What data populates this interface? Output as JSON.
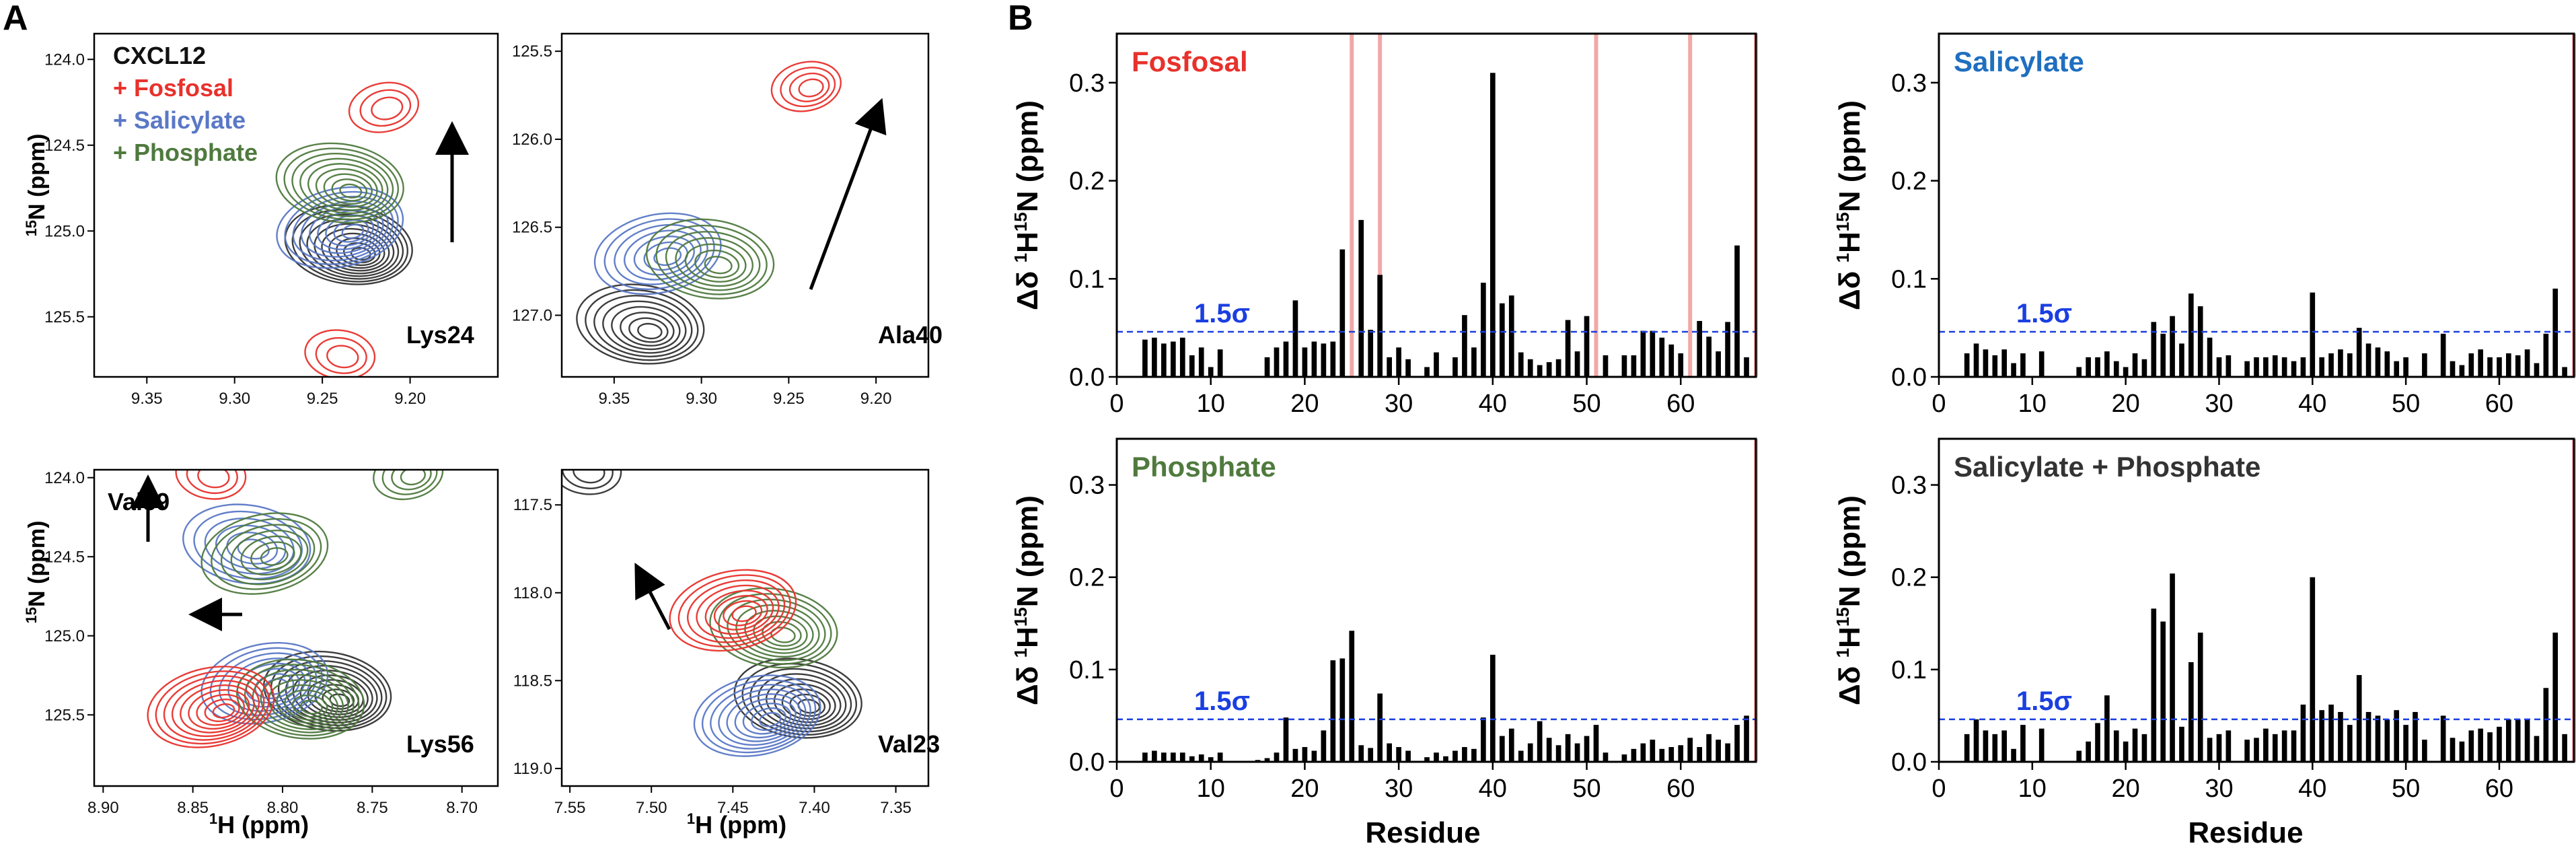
{
  "colors": {
    "fosfosal": "#e8312c",
    "salicylate": "#5a78c6",
    "phosphate": "#4f7a3e",
    "cxcl12": "#333333",
    "threshold": "#1a3fe0",
    "highlight": "#f2a7a7",
    "salicylate_title": "#1f6fc0",
    "bar": "#000000"
  },
  "panel_labels": {
    "a": "A",
    "b": "B"
  },
  "nmr_legend": {
    "title": "CXCL12",
    "entries": [
      {
        "label": "+ Fosfosal",
        "color_key": "fosfosal"
      },
      {
        "label": "+ Salicylate",
        "color_key": "salicylate"
      },
      {
        "label": "+ Phosphate",
        "color_key": "phosphate"
      }
    ]
  },
  "nmr_axis_titles": {
    "n15_prefix": "15",
    "n15_rest": "N (ppm)",
    "h1_prefix": "1",
    "h1_rest": "H (ppm)"
  },
  "nmr_panels": [
    {
      "residue": "Lys24",
      "x_ticks": [
        "9.35",
        "9.30",
        "9.25",
        "9.20"
      ],
      "y_ticks": [
        "124.0",
        "124.5",
        "125.0",
        "125.5"
      ],
      "spectra": [
        {
          "key": "cxcl12",
          "center_ppm": [
            9.235,
            125.08
          ],
          "levels": 10
        },
        {
          "key": "salicylate",
          "center_ppm": [
            9.24,
            124.98
          ],
          "levels": 9
        },
        {
          "key": "phosphate",
          "center_ppm": [
            9.24,
            124.72
          ],
          "levels": 9
        },
        {
          "key": "fosfosal",
          "center_ppm": [
            9.215,
            124.28
          ],
          "levels": 3
        },
        {
          "key": "fosfosal",
          "center_ppm": [
            9.24,
            125.72
          ],
          "levels": 3
        }
      ]
    },
    {
      "residue": "Ala40",
      "x_ticks": [
        "9.35",
        "9.30",
        "9.25",
        "9.20"
      ],
      "y_ticks": [
        "125.5",
        "126.0",
        "126.5",
        "127.0"
      ],
      "spectra": [
        {
          "key": "cxcl12",
          "center_ppm": [
            9.335,
            127.05
          ],
          "levels": 8
        },
        {
          "key": "salicylate",
          "center_ppm": [
            9.325,
            126.65
          ],
          "levels": 7
        },
        {
          "key": "phosphate",
          "center_ppm": [
            9.295,
            126.68
          ],
          "levels": 7
        },
        {
          "key": "fosfosal",
          "center_ppm": [
            9.24,
            125.7
          ],
          "levels": 4
        }
      ]
    },
    {
      "residue": "Lys56",
      "label2": "Val39",
      "x_ticks": [
        "8.90",
        "8.85",
        "8.80",
        "8.75",
        "8.70"
      ],
      "y_ticks": [
        "124.0",
        "124.5",
        "125.0",
        "125.5"
      ],
      "spectra": [
        {
          "key": "cxcl12",
          "center_ppm": [
            8.775,
            125.35
          ],
          "levels": 10
        },
        {
          "key": "salicylate",
          "center_ppm": [
            8.81,
            125.3
          ],
          "levels": 8
        },
        {
          "key": "phosphate",
          "center_ppm": [
            8.79,
            125.4
          ],
          "levels": 9
        },
        {
          "key": "fosfosal",
          "center_ppm": [
            8.84,
            125.45
          ],
          "levels": 9
        },
        {
          "key": "salicylate",
          "center_ppm": [
            8.82,
            124.42
          ],
          "levels": 6
        },
        {
          "key": "phosphate",
          "center_ppm": [
            8.81,
            124.48
          ],
          "levels": 7
        },
        {
          "key": "fosfosal",
          "center_ppm": [
            8.84,
            123.98
          ],
          "levels": 3
        },
        {
          "key": "phosphate",
          "center_ppm": [
            8.73,
            123.98
          ],
          "levels": 4
        }
      ]
    },
    {
      "residue": "Val23",
      "x_ticks": [
        "7.55",
        "7.50",
        "7.45",
        "7.40",
        "7.35"
      ],
      "y_ticks": [
        "117.5",
        "118.0",
        "118.5",
        "119.0"
      ],
      "spectra": [
        {
          "key": "cxcl12",
          "center_ppm": [
            7.41,
            118.6
          ],
          "levels": 9
        },
        {
          "key": "salicylate",
          "center_ppm": [
            7.435,
            118.7
          ],
          "levels": 9
        },
        {
          "key": "phosphate",
          "center_ppm": [
            7.425,
            118.2
          ],
          "levels": 8
        },
        {
          "key": "fosfosal",
          "center_ppm": [
            7.45,
            118.1
          ],
          "levels": 8
        },
        {
          "key": "cxcl12",
          "center_ppm": [
            7.54,
            117.3
          ],
          "levels": 3
        }
      ]
    }
  ],
  "threshold_label": "1.5σ",
  "y_axis_title": {
    "pre": "Δδ ",
    "h_sup": "1",
    "h": "H",
    "n_sup": "15",
    "n": "N (ppm)"
  },
  "chart_data": [
    {
      "type": "bar",
      "title": "Fosfosal",
      "title_color_key": "fosfosal",
      "xlabel": "",
      "ylabel": "Δδ 1H15N (ppm)",
      "xlim": [
        0,
        68
      ],
      "ylim": [
        0,
        0.35
      ],
      "x_ticks": [
        0,
        10,
        20,
        30,
        40,
        50,
        60
      ],
      "y_ticks": [
        0.0,
        0.1,
        0.2,
        0.3
      ],
      "threshold": 0.046,
      "highlight_residues": [
        25,
        28,
        51,
        61,
        68
      ],
      "x": [
        3,
        4,
        5,
        6,
        7,
        8,
        9,
        10,
        11,
        16,
        17,
        18,
        19,
        20,
        21,
        22,
        23,
        24,
        26,
        27,
        28,
        29,
        30,
        31,
        33,
        34,
        36,
        37,
        38,
        39,
        40,
        41,
        42,
        43,
        44,
        45,
        46,
        47,
        48,
        49,
        50,
        52,
        54,
        55,
        56,
        57,
        58,
        59,
        60,
        62,
        63,
        64,
        65,
        66,
        67
      ],
      "values": [
        0.038,
        0.04,
        0.034,
        0.036,
        0.04,
        0.022,
        0.03,
        0.01,
        0.028,
        0.02,
        0.03,
        0.036,
        0.078,
        0.03,
        0.036,
        0.034,
        0.036,
        0.13,
        0.16,
        0.048,
        0.104,
        0.02,
        0.03,
        0.018,
        0.01,
        0.025,
        0.02,
        0.063,
        0.03,
        0.096,
        0.31,
        0.075,
        0.083,
        0.025,
        0.018,
        0.012,
        0.015,
        0.018,
        0.058,
        0.026,
        0.062,
        0.022,
        0.022,
        0.022,
        0.047,
        0.047,
        0.04,
        0.033,
        0.024,
        0.057,
        0.041,
        0.026,
        0.056,
        0.134,
        0.02
      ]
    },
    {
      "type": "bar",
      "title": "Salicylate",
      "title_color_key": "salicylate_title",
      "xlabel": "",
      "ylabel": "Δδ 1H15N (ppm)",
      "xlim": [
        0,
        68
      ],
      "ylim": [
        0,
        0.35
      ],
      "x_ticks": [
        0,
        10,
        20,
        30,
        40,
        50,
        60
      ],
      "y_ticks": [
        0.0,
        0.1,
        0.2,
        0.3
      ],
      "threshold": 0.046,
      "highlight_residues": [
        68
      ],
      "x": [
        3,
        4,
        5,
        6,
        7,
        8,
        9,
        11,
        15,
        16,
        17,
        18,
        19,
        20,
        21,
        22,
        23,
        24,
        25,
        26,
        27,
        28,
        29,
        30,
        31,
        33,
        34,
        35,
        36,
        37,
        38,
        39,
        40,
        41,
        42,
        43,
        44,
        45,
        46,
        47,
        48,
        49,
        50,
        52,
        54,
        55,
        56,
        57,
        58,
        59,
        60,
        61,
        62,
        63,
        64,
        65,
        66,
        67
      ],
      "values": [
        0.024,
        0.034,
        0.028,
        0.022,
        0.028,
        0.014,
        0.024,
        0.026,
        0.01,
        0.02,
        0.02,
        0.026,
        0.016,
        0.01,
        0.024,
        0.018,
        0.056,
        0.044,
        0.062,
        0.034,
        0.085,
        0.072,
        0.04,
        0.02,
        0.022,
        0.016,
        0.02,
        0.02,
        0.022,
        0.02,
        0.016,
        0.02,
        0.086,
        0.02,
        0.024,
        0.028,
        0.024,
        0.05,
        0.034,
        0.03,
        0.026,
        0.016,
        0.02,
        0.024,
        0.044,
        0.016,
        0.012,
        0.024,
        0.028,
        0.02,
        0.02,
        0.024,
        0.022,
        0.028,
        0.014,
        0.044,
        0.09,
        0.01
      ]
    },
    {
      "type": "bar",
      "title": "Phosphate",
      "title_color_key": "phosphate",
      "xlabel": "",
      "ylabel": "Δδ 1H15N (ppm)",
      "xlim": [
        0,
        68
      ],
      "ylim": [
        0,
        0.35
      ],
      "x_ticks": [
        0,
        10,
        20,
        30,
        40,
        50,
        60
      ],
      "y_ticks": [
        0.0,
        0.1,
        0.2,
        0.3
      ],
      "threshold": 0.046,
      "highlight_residues": [
        68
      ],
      "x": [
        3,
        4,
        5,
        6,
        7,
        8,
        9,
        10,
        11,
        15,
        16,
        17,
        18,
        19,
        20,
        21,
        22,
        23,
        24,
        25,
        26,
        27,
        28,
        29,
        30,
        31,
        33,
        34,
        35,
        36,
        37,
        38,
        39,
        40,
        41,
        42,
        43,
        44,
        45,
        46,
        47,
        48,
        49,
        50,
        51,
        52,
        54,
        55,
        56,
        57,
        58,
        59,
        60,
        61,
        62,
        63,
        64,
        65,
        66,
        67
      ],
      "values": [
        0.01,
        0.012,
        0.01,
        0.01,
        0.01,
        0.006,
        0.008,
        0.005,
        0.01,
        0.002,
        0.004,
        0.01,
        0.048,
        0.014,
        0.016,
        0.012,
        0.034,
        0.11,
        0.112,
        0.142,
        0.018,
        0.015,
        0.074,
        0.02,
        0.016,
        0.012,
        0.005,
        0.01,
        0.006,
        0.012,
        0.016,
        0.014,
        0.048,
        0.116,
        0.028,
        0.036,
        0.012,
        0.02,
        0.044,
        0.026,
        0.018,
        0.03,
        0.02,
        0.028,
        0.04,
        0.01,
        0.008,
        0.014,
        0.02,
        0.024,
        0.014,
        0.016,
        0.018,
        0.026,
        0.016,
        0.03,
        0.024,
        0.02,
        0.04,
        0.05
      ]
    },
    {
      "type": "bar",
      "title": "Salicylate + Phosphate",
      "title_color_key": "cxcl12",
      "xlabel": "Residue",
      "ylabel": "Δδ 1H15N (ppm)",
      "xlim": [
        0,
        68
      ],
      "ylim": [
        0,
        0.35
      ],
      "x_ticks": [
        0,
        10,
        20,
        30,
        40,
        50,
        60
      ],
      "y_ticks": [
        0.0,
        0.1,
        0.2,
        0.3
      ],
      "threshold": 0.046,
      "highlight_residues": [
        68
      ],
      "x": [
        3,
        4,
        5,
        6,
        7,
        8,
        9,
        11,
        15,
        16,
        17,
        18,
        19,
        20,
        21,
        22,
        23,
        24,
        25,
        26,
        27,
        28,
        29,
        30,
        31,
        33,
        34,
        35,
        36,
        37,
        38,
        39,
        40,
        41,
        42,
        43,
        44,
        45,
        46,
        47,
        48,
        49,
        50,
        51,
        52,
        54,
        55,
        56,
        57,
        58,
        59,
        60,
        61,
        62,
        63,
        64,
        65,
        66,
        67
      ],
      "values": [
        0.03,
        0.046,
        0.034,
        0.03,
        0.034,
        0.014,
        0.04,
        0.036,
        0.012,
        0.022,
        0.042,
        0.072,
        0.034,
        0.022,
        0.036,
        0.03,
        0.166,
        0.152,
        0.204,
        0.038,
        0.108,
        0.14,
        0.026,
        0.03,
        0.034,
        0.024,
        0.026,
        0.036,
        0.03,
        0.034,
        0.034,
        0.062,
        0.2,
        0.056,
        0.062,
        0.054,
        0.04,
        0.094,
        0.054,
        0.05,
        0.046,
        0.056,
        0.04,
        0.054,
        0.024,
        0.05,
        0.026,
        0.022,
        0.034,
        0.036,
        0.032,
        0.038,
        0.046,
        0.046,
        0.046,
        0.028,
        0.08,
        0.14,
        0.03
      ]
    }
  ],
  "xlabel_shared": "Residue"
}
